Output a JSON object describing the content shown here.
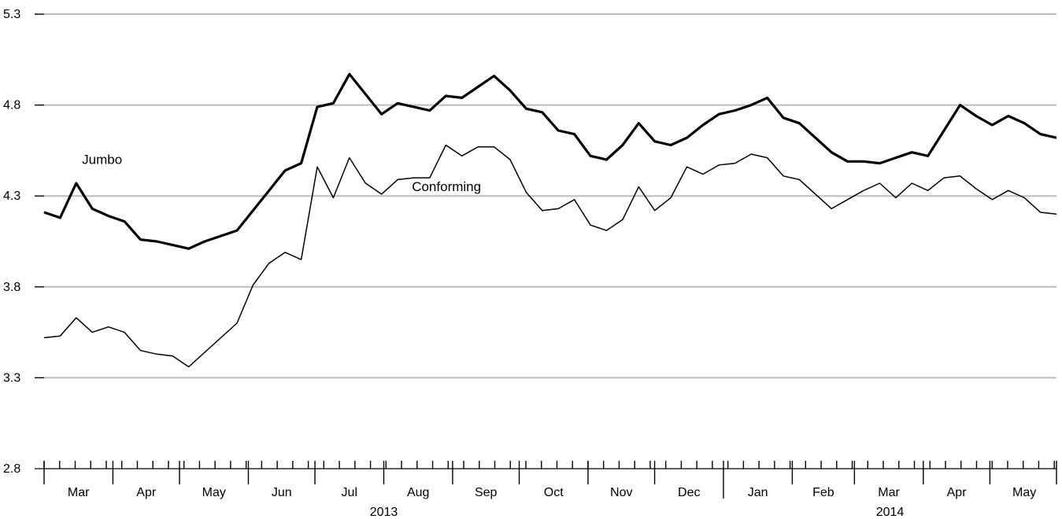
{
  "chart_data": {
    "type": "line",
    "title": "",
    "xlabel": "",
    "ylabel": "",
    "ylim": [
      2.8,
      5.3
    ],
    "yticks": [
      "5.3",
      "4.8",
      "4.3",
      "3.8",
      "3.3",
      "2.8"
    ],
    "grid": true,
    "months": [
      "Mar",
      "Apr",
      "May",
      "Jun",
      "Jul",
      "Aug",
      "Sep",
      "Oct",
      "Nov",
      "Dec",
      "Jan",
      "Feb",
      "Mar",
      "Apr",
      "May"
    ],
    "years": [
      "2013",
      "2014"
    ],
    "x_start": "2013-03-01",
    "x_end": "2014-05-31",
    "series": [
      {
        "name": "Jumbo",
        "style": "thick",
        "values": [
          4.21,
          4.18,
          4.37,
          4.23,
          4.19,
          4.16,
          4.06,
          4.05,
          4.03,
          4.01,
          4.05,
          4.08,
          4.11,
          4.22,
          4.33,
          4.44,
          4.48,
          4.79,
          4.81,
          4.97,
          4.86,
          4.75,
          4.81,
          4.79,
          4.77,
          4.85,
          4.84,
          4.9,
          4.96,
          4.88,
          4.78,
          4.76,
          4.66,
          4.64,
          4.52,
          4.5,
          4.58,
          4.7,
          4.6,
          4.58,
          4.62,
          4.69,
          4.75,
          4.77,
          4.8,
          4.84,
          4.73,
          4.7,
          4.62,
          4.54,
          4.49,
          4.49,
          4.48,
          4.51,
          4.54,
          4.52,
          4.66,
          4.8,
          4.74,
          4.69,
          4.74,
          4.7,
          4.64,
          4.62
        ]
      },
      {
        "name": "Conforming",
        "style": "thin",
        "values": [
          3.52,
          3.53,
          3.63,
          3.55,
          3.58,
          3.55,
          3.45,
          3.43,
          3.42,
          3.36,
          3.44,
          3.52,
          3.6,
          3.81,
          3.93,
          3.99,
          3.95,
          4.46,
          4.29,
          4.51,
          4.37,
          4.31,
          4.39,
          4.4,
          4.4,
          4.58,
          4.52,
          4.57,
          4.57,
          4.5,
          4.32,
          4.22,
          4.23,
          4.28,
          4.14,
          4.11,
          4.17,
          4.35,
          4.22,
          4.29,
          4.46,
          4.42,
          4.47,
          4.48,
          4.53,
          4.51,
          4.41,
          4.39,
          4.31,
          4.23,
          4.28,
          4.33,
          4.37,
          4.29,
          4.37,
          4.33,
          4.4,
          4.41,
          4.34,
          4.28,
          4.33,
          4.29,
          4.21,
          4.2
        ]
      }
    ],
    "annotations": [
      {
        "text": "Jumbo",
        "series": "Jumbo",
        "at_index": 4
      },
      {
        "text": "Conforming",
        "series": "Conforming",
        "at_index": 27
      }
    ]
  }
}
